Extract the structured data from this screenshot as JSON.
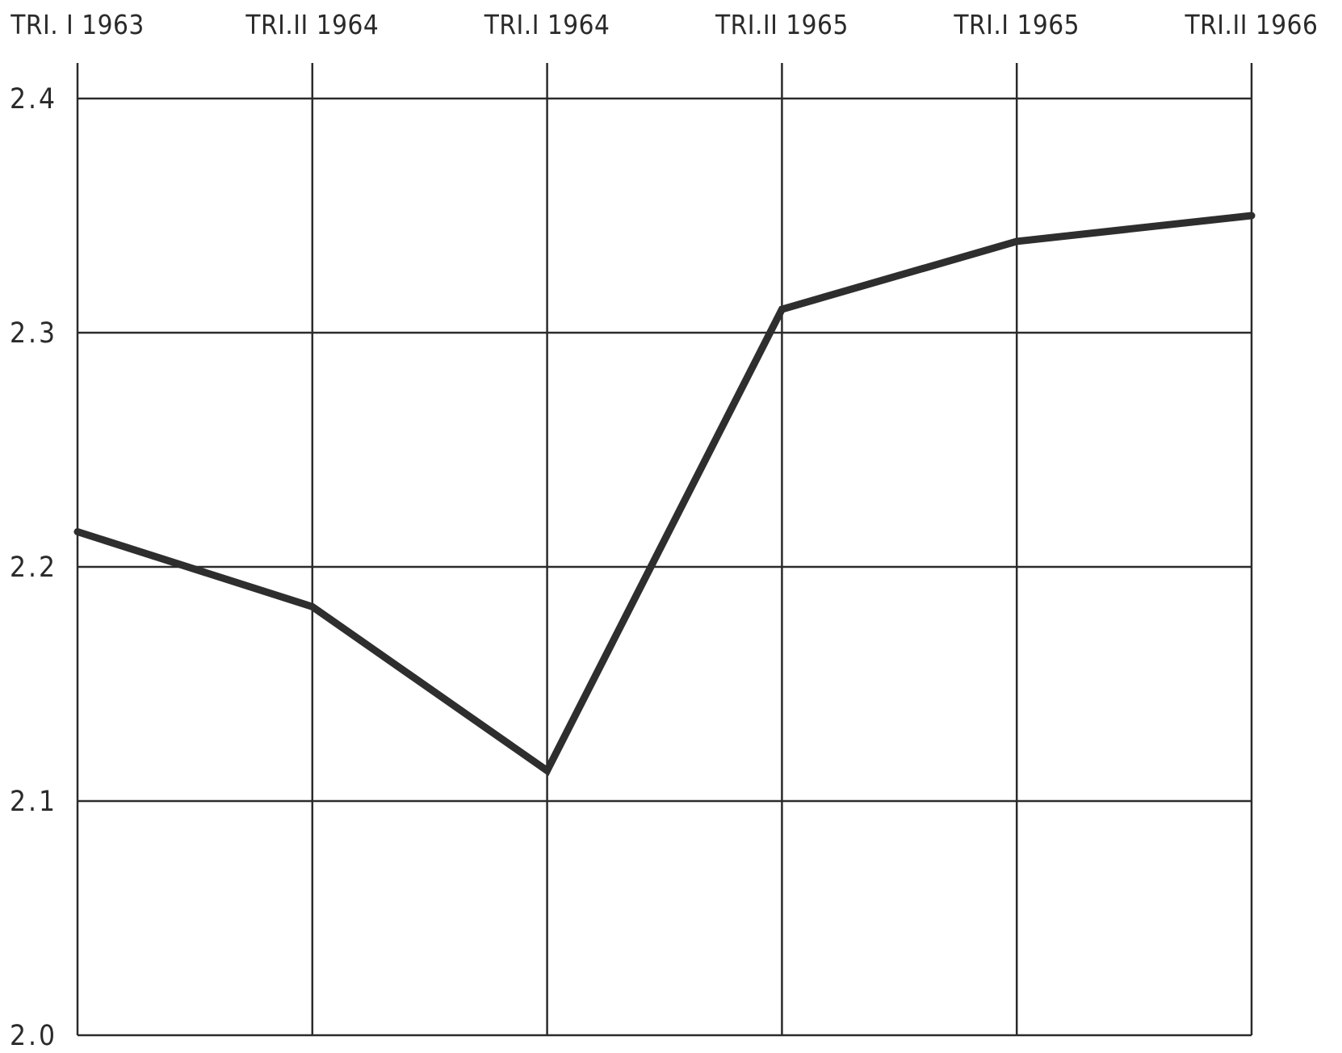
{
  "chart_data": {
    "type": "line",
    "title": "",
    "xlabel": "",
    "ylabel": "",
    "categories": [
      "TRI.I 1963",
      "TRI.II 1964",
      "TRI.I 1964",
      "TRI.II 1965",
      "TRI.I 1965",
      "TRI.II 1966"
    ],
    "x_tick_labels": [
      "TRI. I 1963",
      "TRI.II 1964",
      "TRI.I 1964",
      "TRI.II 1965",
      "TRI.I 1965",
      "TRI.II 1966"
    ],
    "y_tick_labels": [
      "2.4",
      "2.3",
      "2.2",
      "2.1",
      "2.0"
    ],
    "y_ticks": [
      2.4,
      2.3,
      2.2,
      2.1,
      2.0
    ],
    "ylim": [
      2.0,
      2.4
    ],
    "grid": true,
    "legend": "none",
    "series": [
      {
        "values": [
          2.215,
          2.183,
          2.113,
          2.31,
          2.339,
          2.35
        ]
      }
    ],
    "colors": {
      "line": "#2e2e2e",
      "grid": "#2b2b2b",
      "text": "#2a2a2a",
      "background": "#ffffff"
    }
  }
}
